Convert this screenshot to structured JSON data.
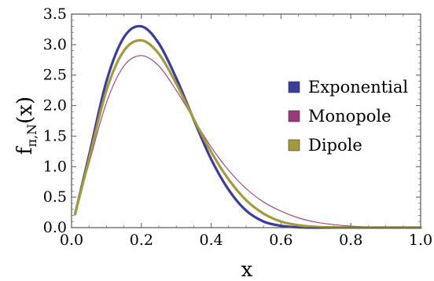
{
  "chart_data": {
    "type": "line",
    "title": "",
    "xlabel": "x",
    "ylabel_main": "f",
    "ylabel_sub": "π,N",
    "ylabel_arg": "(x)",
    "xlim": [
      0.0,
      1.0
    ],
    "ylim": [
      0.0,
      3.5
    ],
    "x_ticks": [
      "0.0",
      "0.2",
      "0.4",
      "0.6",
      "0.8",
      "1.0"
    ],
    "y_ticks": [
      "0.0",
      "0.5",
      "1.0",
      "1.5",
      "2.0",
      "2.5",
      "3.0",
      "3.5"
    ],
    "grid": false,
    "legend_position": "right",
    "x": [
      0.01,
      0.05,
      0.1,
      0.15,
      0.2,
      0.25,
      0.3,
      0.35,
      0.4,
      0.45,
      0.5,
      0.55,
      0.6,
      0.65,
      0.7,
      0.75,
      0.8,
      0.85,
      0.9,
      0.95,
      1.0
    ],
    "series": [
      {
        "name": "Exponential",
        "color": "#3a3d9a",
        "values": [
          0.22,
          1.18,
          2.4,
          3.12,
          3.3,
          3.02,
          2.45,
          1.77,
          1.12,
          0.62,
          0.28,
          0.1,
          0.03,
          0.005,
          0.0,
          0.0,
          0.0,
          0.0,
          0.0,
          0.0,
          0.0
        ]
      },
      {
        "name": "Monopole",
        "color": "#9b3a7a",
        "values": [
          0.22,
          1.05,
          2.05,
          2.65,
          2.82,
          2.65,
          2.25,
          1.78,
          1.32,
          0.94,
          0.64,
          0.42,
          0.27,
          0.16,
          0.09,
          0.05,
          0.025,
          0.01,
          0.004,
          0.001,
          0.0
        ]
      },
      {
        "name": "Dipole",
        "color": "#a49a3c",
        "values": [
          0.22,
          1.12,
          2.25,
          2.9,
          3.07,
          2.85,
          2.36,
          1.78,
          1.24,
          0.79,
          0.45,
          0.23,
          0.1,
          0.04,
          0.012,
          0.003,
          0.0,
          0.0,
          0.0,
          0.0,
          0.0
        ]
      }
    ]
  }
}
